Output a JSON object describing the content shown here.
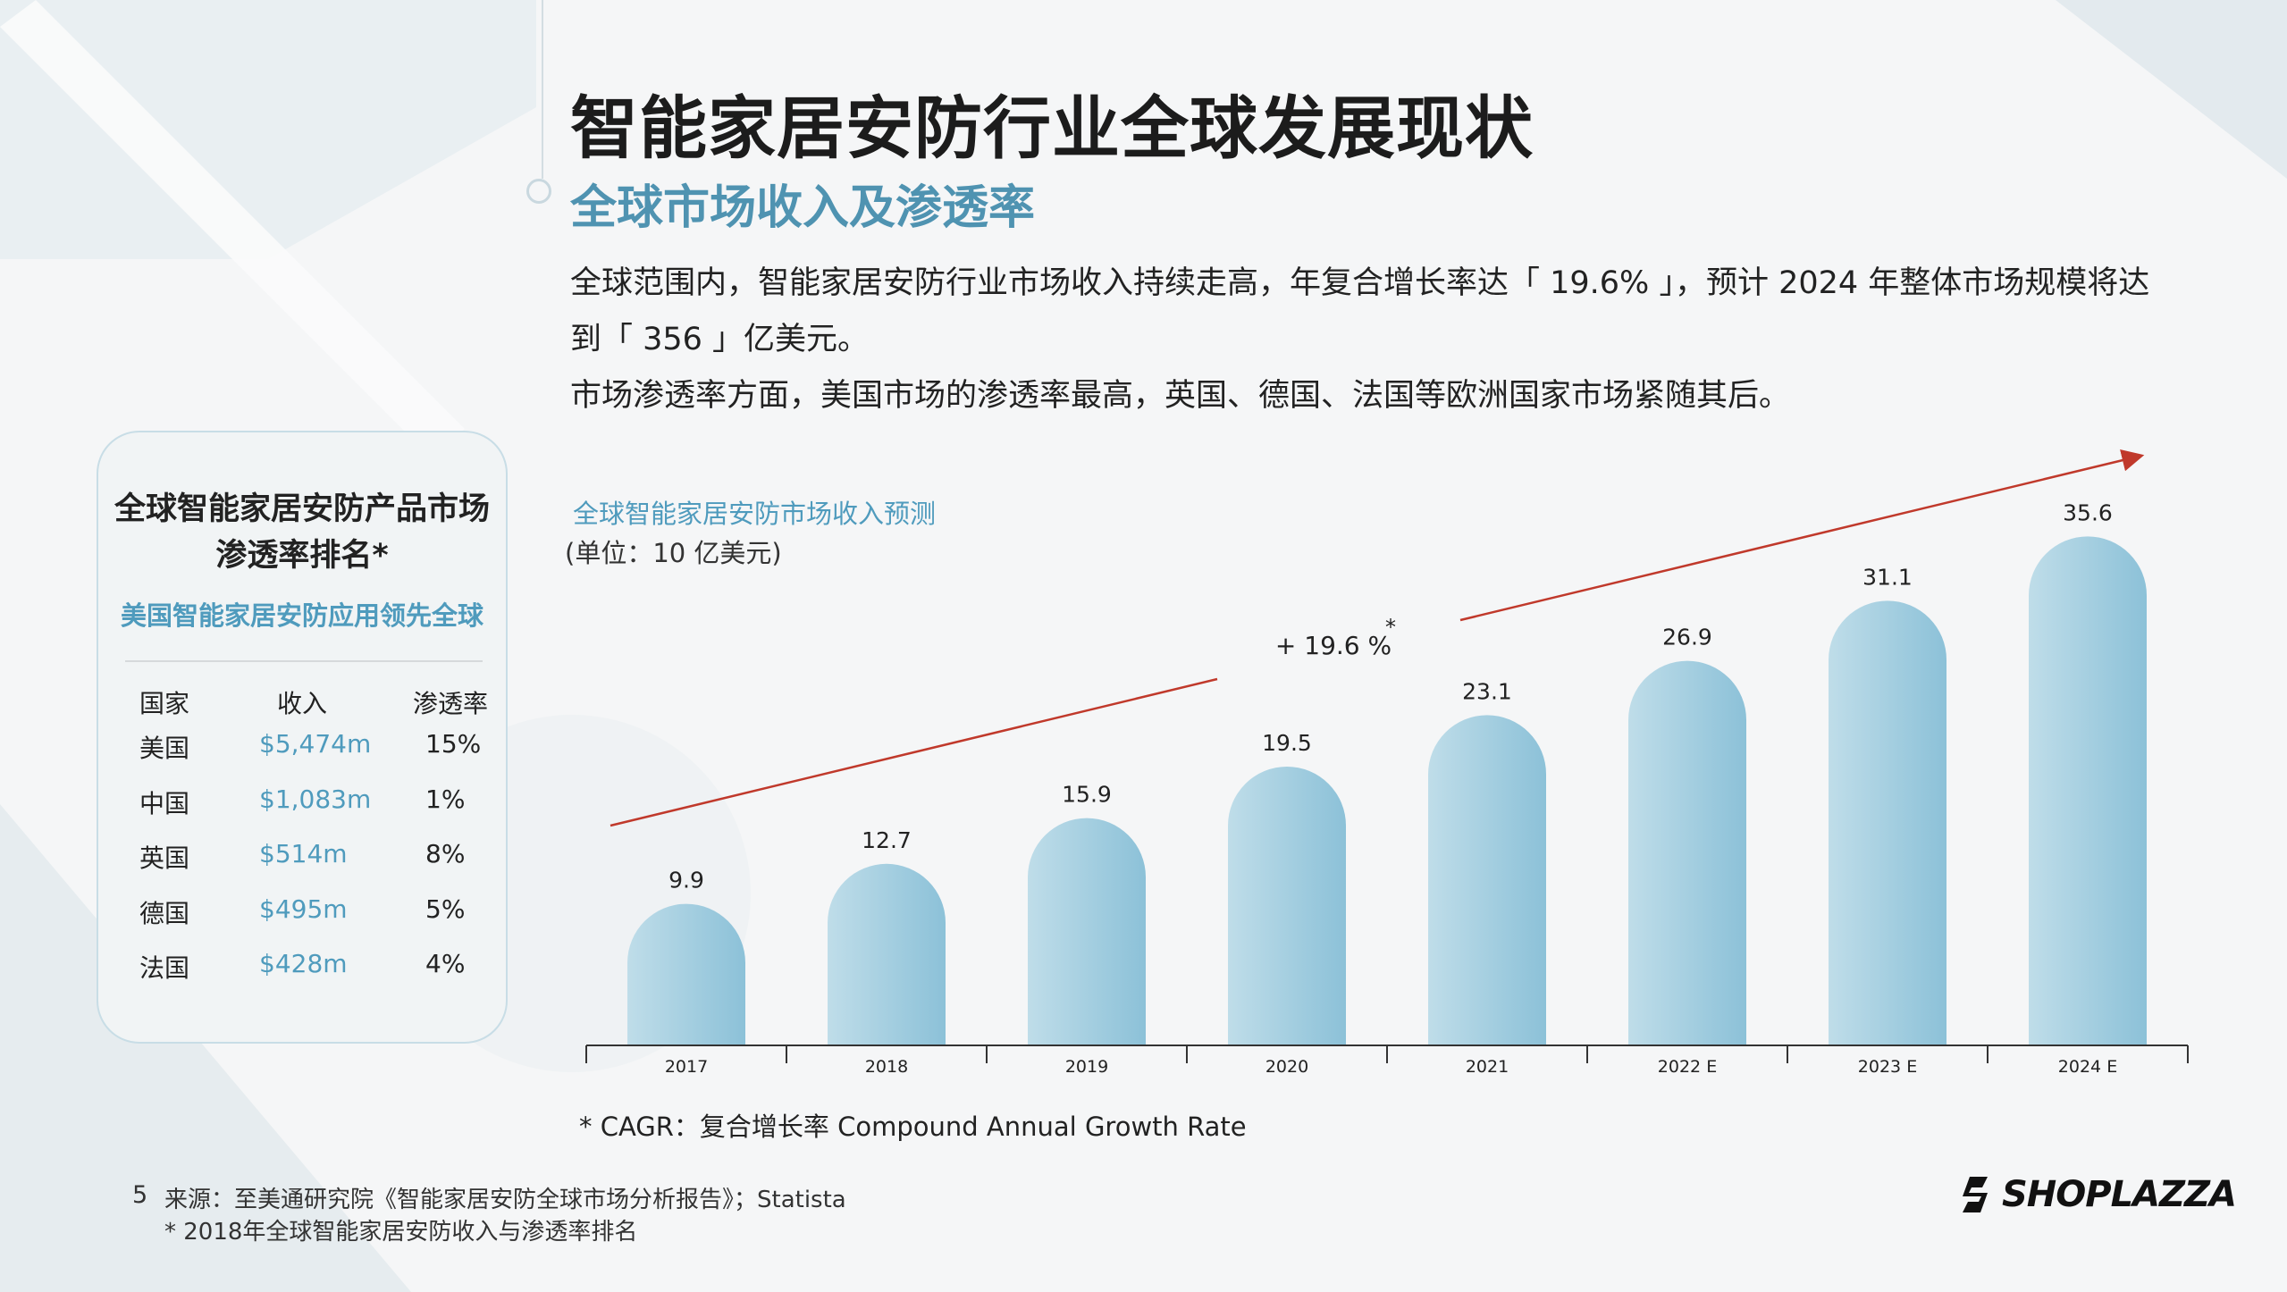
{
  "page": {
    "title": "智能家居安防行业全球发展现状",
    "subtitle": "全球市场收入及渗透率",
    "paragraph1": "全球范围内，智能家居安防行业市场收入持续走高，年复合增长率达「 19.6% 」，预计 2024 年整体市场规模将达到「 356 」亿美元。",
    "paragraph2": "市场渗透率方面，美国市场的渗透率最高，英国、德国、法国等欧洲国家市场紧随其后。",
    "page_number": "5",
    "source": "来源：至美通研究院《智能家居安防全球市场分析报告》；Statista",
    "source_note": "* 2018年全球智能家居安防收入与渗透率排名",
    "cagr_note": "* CAGR：复合增长率 Compound Annual Growth Rate",
    "logo_text": "SHOPLAZZA"
  },
  "ranking_card": {
    "title_line1": "全球智能家居安防产品市场",
    "title_line2": "渗透率排名*",
    "subtitle": "美国智能家居安防应用领先全球",
    "headers": [
      "国家",
      "收入",
      "渗透率"
    ],
    "rows": [
      [
        "美国",
        "$5,474m",
        "15%"
      ],
      [
        "中国",
        "$1,083m",
        "1%"
      ],
      [
        "英国",
        "$514m",
        "8%"
      ],
      [
        "德国",
        "$495m",
        "5%"
      ],
      [
        "法国",
        "$428m",
        "4%"
      ]
    ]
  },
  "chart_data": {
    "type": "bar",
    "title": "全球智能家居安防市场收入预测",
    "unit_label": "(单位：10 亿美元)",
    "categories": [
      "2017",
      "2018",
      "2019",
      "2020",
      "2021",
      "2022 E",
      "2023 E",
      "2024 E"
    ],
    "values": [
      9.9,
      12.7,
      15.9,
      19.5,
      23.1,
      26.9,
      31.1,
      35.6
    ],
    "value_labels": [
      "9.9",
      "12.7",
      "15.9",
      "19.5",
      "23.1",
      "26.9",
      "31.1",
      "35.6"
    ],
    "ylim": [
      0,
      40
    ],
    "grid": false,
    "trend_annotation": "+ 19.6 %",
    "trend_annotation_mark": "*",
    "colors": {
      "bar_top": "#bfdde9",
      "bar_bottom": "#8cc1d8",
      "trend_arrow": "#c0392b",
      "accent": "#4f9bbd"
    }
  }
}
